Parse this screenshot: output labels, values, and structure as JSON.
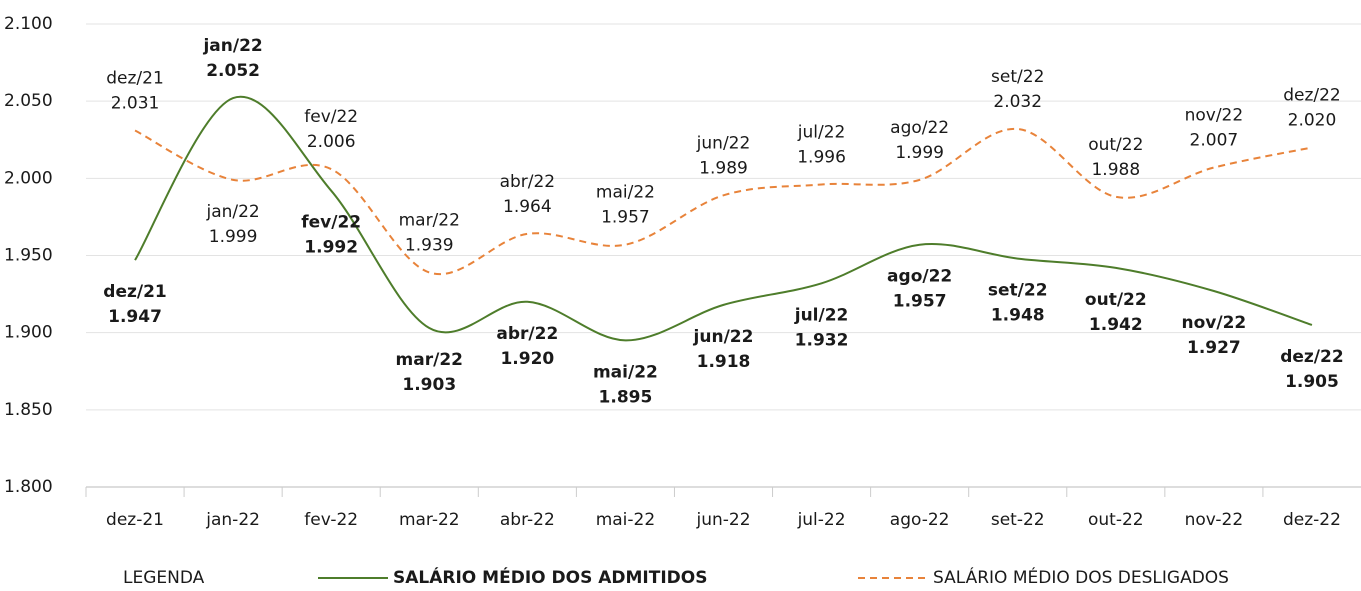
{
  "chart_data": {
    "type": "line",
    "categories": [
      "dez-21",
      "jan-22",
      "fev-22",
      "mar-22",
      "abr-22",
      "mai-22",
      "jun-22",
      "jul-22",
      "ago-22",
      "set-22",
      "out-22",
      "nov-22",
      "dez-22"
    ],
    "series": [
      {
        "name": "SALÁRIO MÉDIO DOS ADMITIDOS",
        "color": "#4e7d2b",
        "dashed": false,
        "bold": true,
        "labels": [
          "dez/21",
          "jan/22",
          "fev/22",
          "mar/22",
          "abr/22",
          "mai/22",
          "jun/22",
          "jul/22",
          "ago/22",
          "set/22",
          "out/22",
          "nov/22",
          "dez/22"
        ],
        "values": [
          1947,
          2052,
          1992,
          1903,
          1920,
          1895,
          1918,
          1932,
          1957,
          1948,
          1942,
          1927,
          1905
        ],
        "value_labels": [
          "1.947",
          "2.052",
          "1.992",
          "1.903",
          "1.920",
          "1.895",
          "1.918",
          "1.932",
          "1.957",
          "1.948",
          "1.942",
          "1.927",
          "1.905"
        ]
      },
      {
        "name": "SALÁRIO MÉDIO DOS DESLIGADOS",
        "color": "#e8833a",
        "dashed": true,
        "bold": false,
        "labels": [
          "dez/21",
          "jan/22",
          "fev/22",
          "mar/22",
          "abr/22",
          "mai/22",
          "jun/22",
          "jul/22",
          "ago/22",
          "set/22",
          "out/22",
          "nov/22",
          "dez/22"
        ],
        "values": [
          2031,
          1999,
          2006,
          1939,
          1964,
          1957,
          1989,
          1996,
          1999,
          2032,
          1988,
          2007,
          2020
        ],
        "value_labels": [
          "2.031",
          "1.999",
          "2.006",
          "1.939",
          "1.964",
          "1.957",
          "1.989",
          "1.996",
          "1.999",
          "2.032",
          "1.988",
          "2.007",
          "2.020"
        ]
      }
    ],
    "ylim": [
      1800,
      2100
    ],
    "yticks": [
      {
        "value": 1800,
        "label": "1.800"
      },
      {
        "value": 1850,
        "label": "1.850"
      },
      {
        "value": 1900,
        "label": "1.900"
      },
      {
        "value": 1950,
        "label": "1.950"
      },
      {
        "value": 2000,
        "label": "2.000"
      },
      {
        "value": 2050,
        "label": "2.050"
      },
      {
        "value": 2100,
        "label": "2.100"
      }
    ],
    "grid": true,
    "legend_title": "LEGENDA",
    "legend": "bottom"
  }
}
